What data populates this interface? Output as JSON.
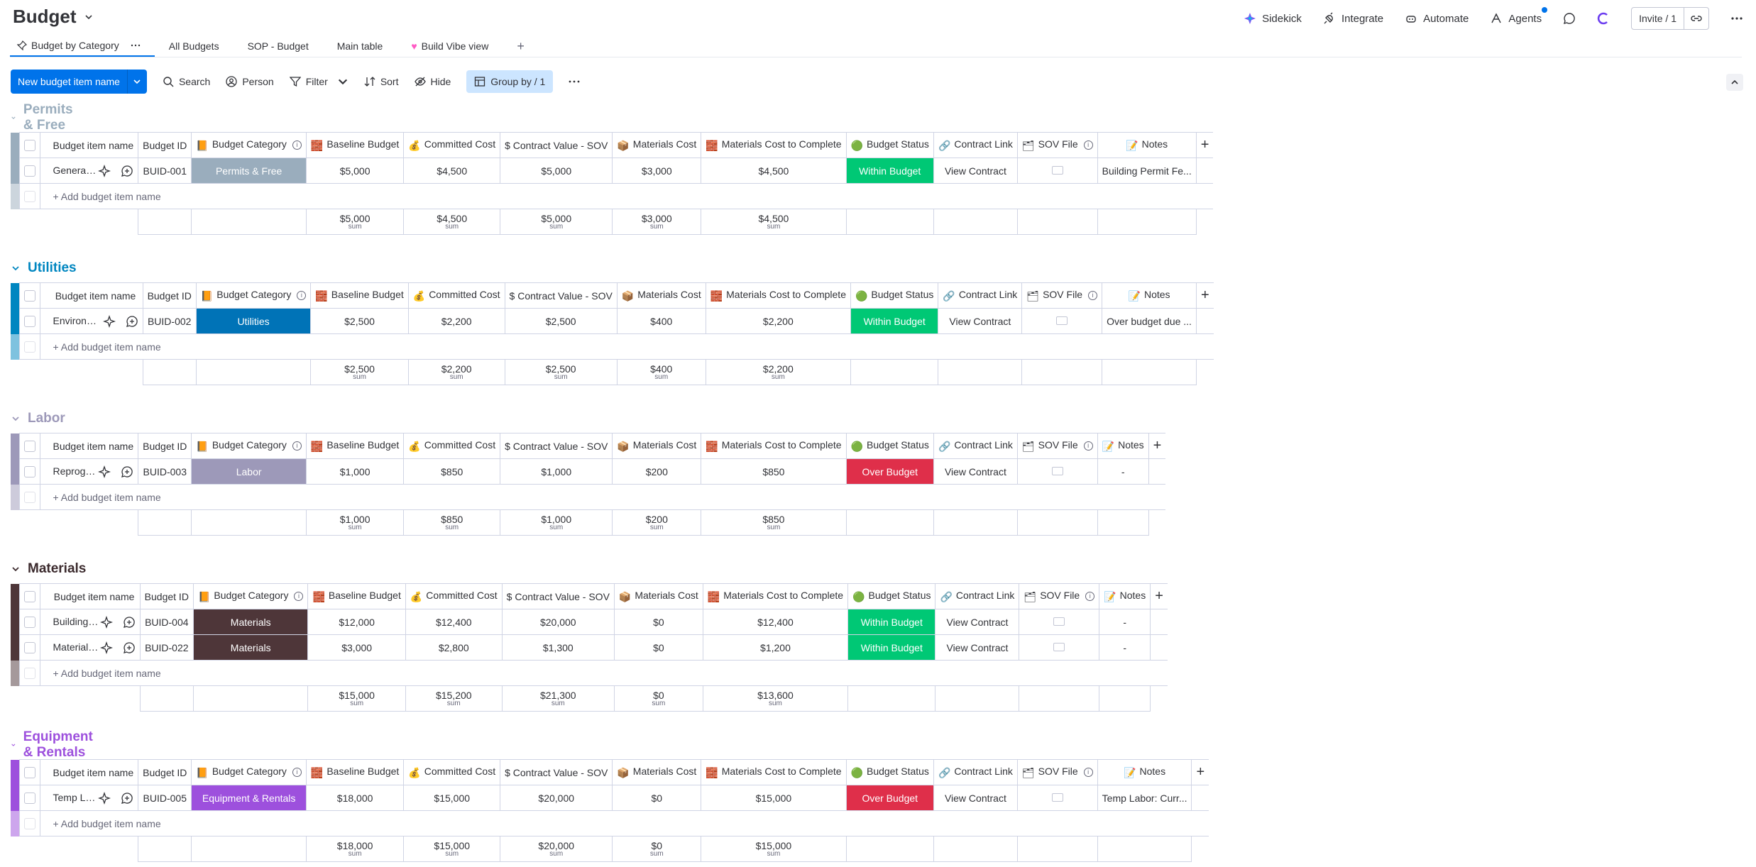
{
  "board": {
    "title": "Budget"
  },
  "top_actions": [
    {
      "label": "Sidekick",
      "icon": "sidekick-icon"
    },
    {
      "label": "Integrate",
      "icon": "integrate-icon"
    },
    {
      "label": "Automate",
      "icon": "automate-icon"
    },
    {
      "label": "Agents",
      "icon": "agents-icon"
    }
  ],
  "invite": {
    "label": "Invite / 1"
  },
  "tabs": [
    {
      "label": "Budget by Category",
      "active": true
    },
    {
      "label": "All Budgets"
    },
    {
      "label": "SOP - Budget"
    },
    {
      "label": "Main table"
    },
    {
      "label": "Build Vibe view"
    }
  ],
  "toolbar": {
    "new_item": "New budget item name",
    "search": "Search",
    "person": "Person",
    "filter": "Filter",
    "sort": "Sort",
    "hide": "Hide",
    "group_by": "Group by / 1"
  },
  "columns": {
    "name": "Budget item name",
    "id": "Budget ID",
    "category": "Budget Category",
    "baseline": "Baseline Budget",
    "committed": "Committed Cost",
    "contract_value": "$ Contract Value - SOV",
    "materials": "Materials Cost",
    "materials_complete": "Materials Cost to Complete",
    "status": "Budget Status",
    "contract_link": "Contract Link",
    "sov_file": "SOV File",
    "notes": "Notes"
  },
  "add_item_label": "+ Add budget item name",
  "sum_label": "sum",
  "colors": {
    "accent": "#0073ea",
    "within_budget": "#00c875",
    "over_budget": "#df2f4a"
  },
  "groups": [
    {
      "title": "Permits & Free",
      "color": "#9aadbd",
      "title_color": "#9aadbd",
      "cat_color": "#9aadbd",
      "rows": [
        {
          "name": "General Plans",
          "id": "BUID-001",
          "category": "Permits & Free",
          "baseline": "$5,000",
          "committed": "$4,500",
          "contract_value": "$5,000",
          "materials": "$3,000",
          "materials_complete": "$4,500",
          "status": "Within Budget",
          "status_color": "#00c875",
          "contract_link": "View Contract",
          "notes": "Building Permit Fe..."
        }
      ],
      "sums": {
        "baseline": "$5,000",
        "committed": "$4,500",
        "contract_value": "$5,000",
        "materials": "$3,000",
        "materials_complete": "$4,500"
      }
    },
    {
      "title": "Utilities",
      "color": "#0086c0",
      "title_color": "#0086c0",
      "cat_color": "#0073b7",
      "rows": [
        {
          "name": "Environmental Stu...",
          "id": "BUID-002",
          "category": "Utilities",
          "baseline": "$2,500",
          "committed": "$2,200",
          "contract_value": "$2,500",
          "materials": "$400",
          "materials_complete": "$2,200",
          "status": "Within Budget",
          "status_color": "#00c875",
          "contract_link": "View Contract",
          "notes": "Over budget due ..."
        }
      ],
      "sums": {
        "baseline": "$2,500",
        "committed": "$2,200",
        "contract_value": "$2,500",
        "materials": "$400",
        "materials_complete": "$2,200"
      }
    },
    {
      "title": "Labor",
      "color": "#9d99b9",
      "title_color": "#9d99b9",
      "cat_color": "#9d99b9",
      "rows": [
        {
          "name": "Reprographics",
          "id": "BUID-003",
          "category": "Labor",
          "baseline": "$1,000",
          "committed": "$850",
          "contract_value": "$1,000",
          "materials": "$200",
          "materials_complete": "$850",
          "status": "Over Budget",
          "status_color": "#df2f4a",
          "contract_link": "View Contract",
          "notes": "-"
        }
      ],
      "sums": {
        "baseline": "$1,000",
        "committed": "$850",
        "contract_value": "$1,000",
        "materials": "$200",
        "materials_complete": "$850"
      }
    },
    {
      "title": "Materials",
      "color": "#4e3639",
      "title_color": "#3b2a2d",
      "cat_color": "#4e3639",
      "rows": [
        {
          "name": "Building Permit Fee",
          "id": "BUID-004",
          "category": "Materials",
          "baseline": "$12,000",
          "committed": "$12,400",
          "contract_value": "$20,000",
          "materials": "$0",
          "materials_complete": "$12,400",
          "status": "Within Budget",
          "status_color": "#00c875",
          "contract_link": "View Contract",
          "notes": "-"
        },
        {
          "name": "Materials & Testing",
          "id": "BUID-022",
          "category": "Materials",
          "baseline": "$3,000",
          "committed": "$2,800",
          "contract_value": "$1,300",
          "materials": "$0",
          "materials_complete": "$1,200",
          "status": "Within Budget",
          "status_color": "#00c875",
          "contract_link": "View Contract",
          "notes": "-"
        }
      ],
      "sums": {
        "baseline": "$15,000",
        "committed": "$15,200",
        "contract_value": "$21,300",
        "materials": "$0",
        "materials_complete": "$13,600"
      }
    },
    {
      "title": "Equipment & Rentals",
      "color": "#9d50dd",
      "title_color": "#9d50dd",
      "cat_color": "#9d50dd",
      "rows": [
        {
          "name": "Temp Labor",
          "id": "BUID-005",
          "category": "Equipment & Rentals",
          "baseline": "$18,000",
          "committed": "$15,000",
          "contract_value": "$20,000",
          "materials": "$0",
          "materials_complete": "$15,000",
          "status": "Over Budget",
          "status_color": "#df2f4a",
          "contract_link": "View Contract",
          "notes": "Temp Labor: Curr..."
        }
      ],
      "sums": {
        "baseline": "$18,000",
        "committed": "$15,000",
        "contract_value": "$20,000",
        "materials": "$0",
        "materials_complete": "$15,000"
      }
    }
  ]
}
